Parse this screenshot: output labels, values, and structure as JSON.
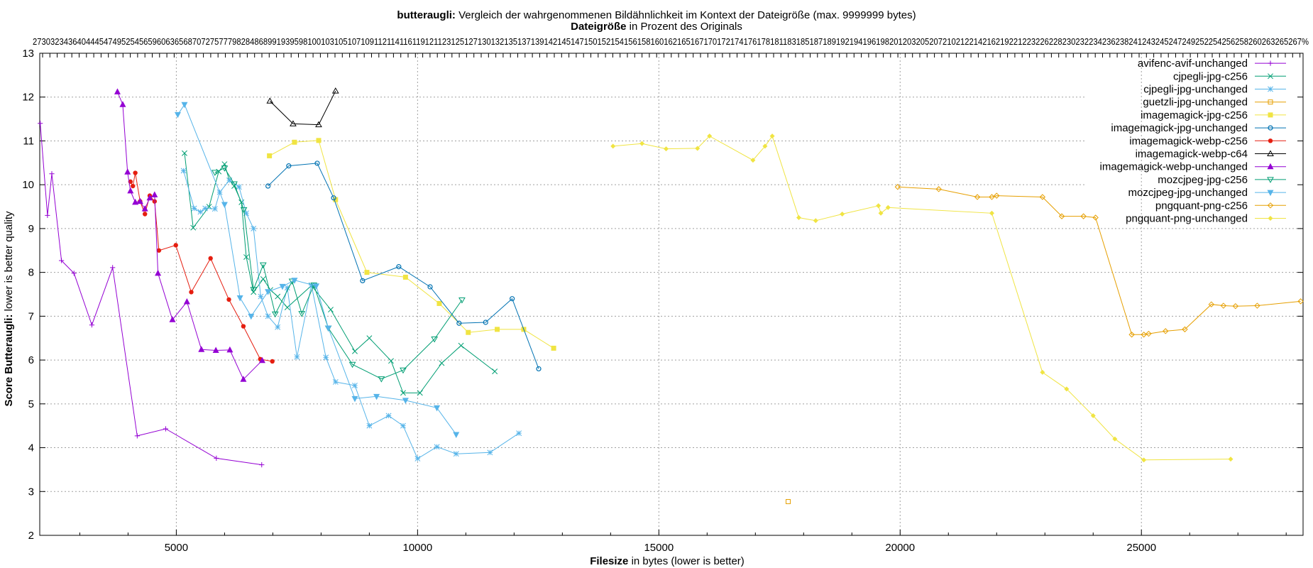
{
  "chart_data": {
    "type": "line",
    "title": {
      "bold": "butteraugli:",
      "rest": " Vergleich der wahrgenommenen Bildähnlichkeit im Kontext der Dateigröße (max. 9999999 bytes)"
    },
    "x2label": {
      "bold": "Dateigröße",
      "rest": " in Prozent des Originals"
    },
    "xlabel": {
      "bold": "Filesize",
      "rest": " in bytes (lower is better)"
    },
    "ylabel": {
      "bold": "Score Butteraugli:",
      "rest": " lower is better quality"
    },
    "xlim": [
      2170,
      28350
    ],
    "ylim": [
      2,
      13
    ],
    "xticks": [
      5000,
      10000,
      15000,
      20000,
      25000
    ],
    "xtick_labels": [
      "5000",
      "10000",
      "15000",
      "20000",
      "25000"
    ],
    "yticks": [
      2,
      3,
      4,
      5,
      6,
      7,
      8,
      9,
      10,
      11,
      12,
      13
    ],
    "ytick_labels": [
      "2",
      "3",
      "4",
      "5",
      "6",
      "7",
      "8",
      "9",
      "10",
      "11",
      "12",
      "13"
    ],
    "top_axis_text": "27303234364044454749525456596063656870727577798284868991939598100103105107109112114116119121123125127130132135137139142145147150152154156158160162165167170172174176178181183185187189192194196198201203205207210212214216219221223226228230232234236238241243245247249252254256258260263265267%",
    "grid": true,
    "legend_position": "top-right",
    "series": [
      {
        "name": "avifenc-avif-unchanged",
        "color": "#9400d3",
        "marker": "plus",
        "x": [
          2180,
          2330,
          2420,
          2620,
          2880,
          3250,
          3680,
          4190,
          4780,
          5830,
          6770
        ],
        "y": [
          11.4,
          9.3,
          10.25,
          8.27,
          7.98,
          6.8,
          8.11,
          4.27,
          4.43,
          3.76,
          3.61
        ]
      },
      {
        "name": "cjpegli-jpg-c256",
        "color": "#009e73",
        "marker": "cross",
        "x": [
          5170,
          5350,
          5680,
          5880,
          6000,
          6100,
          6200,
          6350,
          6450,
          6600,
          6800,
          6950,
          7100,
          7300,
          7800,
          8200,
          8700,
          9000,
          9450,
          9700,
          10050,
          10500,
          10900,
          11600
        ],
        "y": [
          10.72,
          9.02,
          9.5,
          10.3,
          10.47,
          10.1,
          9.97,
          9.6,
          8.35,
          7.55,
          7.85,
          7.6,
          7.45,
          7.2,
          7.7,
          7.15,
          6.2,
          6.5,
          5.98,
          5.25,
          5.25,
          5.93,
          6.33,
          5.74
        ]
      },
      {
        "name": "cjpegli-jpg-unchanged",
        "color": "#56b4e9",
        "marker": "star",
        "x": [
          5150,
          5370,
          5500,
          5600,
          5800,
          5900,
          6100,
          6300,
          6450,
          6600,
          6750,
          6900,
          7100,
          7300,
          7500,
          7800,
          8100,
          8300,
          8700,
          9000,
          9400,
          9700,
          10000,
          10400,
          10800,
          11500,
          12100
        ],
        "y": [
          10.32,
          9.46,
          9.38,
          9.46,
          9.45,
          9.83,
          10.1,
          9.95,
          9.35,
          9.0,
          7.45,
          7.0,
          6.75,
          7.65,
          6.07,
          7.71,
          6.06,
          5.5,
          5.42,
          4.5,
          4.73,
          4.5,
          3.75,
          4.02,
          3.86,
          3.89,
          4.33
        ]
      },
      {
        "name": "guetzli-jpg-unchanged",
        "color": "#e69f00",
        "marker": "square-open",
        "x": [
          17680
        ],
        "y": [
          2.77
        ]
      },
      {
        "name": "imagemagick-jpg-c256",
        "color": "#f0e442",
        "marker": "square-filled",
        "x": [
          6930,
          7450,
          7950,
          8300,
          8950,
          9750,
          10450,
          11050,
          11650,
          12200,
          12820
        ],
        "y": [
          10.66,
          10.97,
          11.01,
          9.66,
          8.0,
          7.89,
          7.29,
          6.63,
          6.7,
          6.7,
          6.27
        ]
      },
      {
        "name": "imagemagick-jpg-unchanged",
        "color": "#0072b2",
        "marker": "circle-open",
        "x": [
          6900,
          7330,
          7920,
          8260,
          8860,
          9610,
          10260,
          10860,
          11410,
          11960,
          12510
        ],
        "y": [
          9.97,
          10.43,
          10.49,
          9.7,
          7.81,
          8.13,
          7.67,
          6.84,
          6.86,
          7.4,
          5.8
        ]
      },
      {
        "name": "imagemagick-webp-c256",
        "color": "#e51e10",
        "marker": "dot",
        "x": [
          4050,
          4100,
          4150,
          4250,
          4350,
          4450,
          4550,
          4640,
          4990,
          5310,
          5710,
          6090,
          6390,
          6740,
          6990
        ],
        "y": [
          10.07,
          9.97,
          10.27,
          9.62,
          9.33,
          9.75,
          9.62,
          8.5,
          8.62,
          7.55,
          8.32,
          7.38,
          6.77,
          6.02,
          5.97
        ]
      },
      {
        "name": "imagemagick-webp-c64",
        "color": "#000000",
        "marker": "triangle-open",
        "x": [
          6940,
          7420,
          7950,
          8300
        ],
        "y": [
          11.91,
          11.39,
          11.37,
          12.14
        ]
      },
      {
        "name": "imagemagick-webp-unchanged",
        "color": "#9400d3",
        "marker": "triangle-filled",
        "x": [
          3780,
          3890,
          3990,
          4050,
          4150,
          4250,
          4350,
          4450,
          4550,
          4620,
          4920,
          5220,
          5520,
          5820,
          6110,
          6390,
          6780
        ],
        "y": [
          12.12,
          11.83,
          10.29,
          9.86,
          9.6,
          9.62,
          9.45,
          9.7,
          9.77,
          7.98,
          6.92,
          7.33,
          6.24,
          6.22,
          6.23,
          5.56,
          5.99
        ]
      },
      {
        "name": "mozcjpeg-jpg-c256",
        "color": "#009e73",
        "marker": "triangle-down-open",
        "x": [
          5800,
          6000,
          6200,
          6400,
          6600,
          6800,
          7050,
          7400,
          7600,
          7850,
          8150,
          8650,
          9250,
          9700,
          10350,
          10920
        ],
        "y": [
          10.28,
          10.38,
          10.02,
          9.43,
          7.61,
          8.17,
          7.05,
          7.8,
          7.06,
          7.71,
          6.73,
          5.9,
          5.57,
          5.77,
          6.48,
          7.37
        ]
      },
      {
        "name": "mozcjpeg-jpg-unchanged",
        "color": "#56b4e9",
        "marker": "triangle-down-filled",
        "x": [
          5030,
          5170,
          6000,
          6320,
          6550,
          6900,
          7200,
          7450,
          7900,
          8150,
          8700,
          9150,
          9750,
          10400,
          10800
        ],
        "y": [
          11.6,
          11.83,
          9.55,
          7.42,
          7.0,
          7.56,
          7.68,
          7.82,
          7.69,
          6.73,
          5.12,
          5.17,
          5.08,
          4.91,
          4.3
        ]
      },
      {
        "name": "pngquant-png-c256",
        "color": "#e69f00",
        "marker": "diamond-open",
        "x": [
          19950,
          20800,
          21600,
          21900,
          22000,
          22950,
          23350,
          23800,
          24050,
          24800,
          25050,
          25150,
          25500,
          25900,
          26450,
          26700,
          26950,
          27400,
          28300
        ],
        "y": [
          9.95,
          9.9,
          9.72,
          9.72,
          9.75,
          9.72,
          9.28,
          9.28,
          9.25,
          6.58,
          6.58,
          6.6,
          6.66,
          6.7,
          7.27,
          7.24,
          7.23,
          7.24,
          7.34
        ]
      },
      {
        "name": "pngquant-png-unchanged",
        "color": "#f0e442",
        "marker": "diamond-filled",
        "x": [
          14050,
          14650,
          15150,
          15800,
          16050,
          16950,
          17200,
          17350,
          17900,
          18250,
          18800,
          19550,
          19600,
          19750,
          21900,
          22950,
          23450,
          24000,
          24450,
          25050,
          26850
        ],
        "y": [
          10.88,
          10.94,
          10.82,
          10.83,
          11.11,
          10.56,
          10.88,
          11.11,
          9.25,
          9.18,
          9.33,
          9.52,
          9.35,
          9.48,
          9.35,
          5.72,
          5.34,
          4.73,
          4.2,
          3.72,
          3.74
        ]
      }
    ]
  }
}
